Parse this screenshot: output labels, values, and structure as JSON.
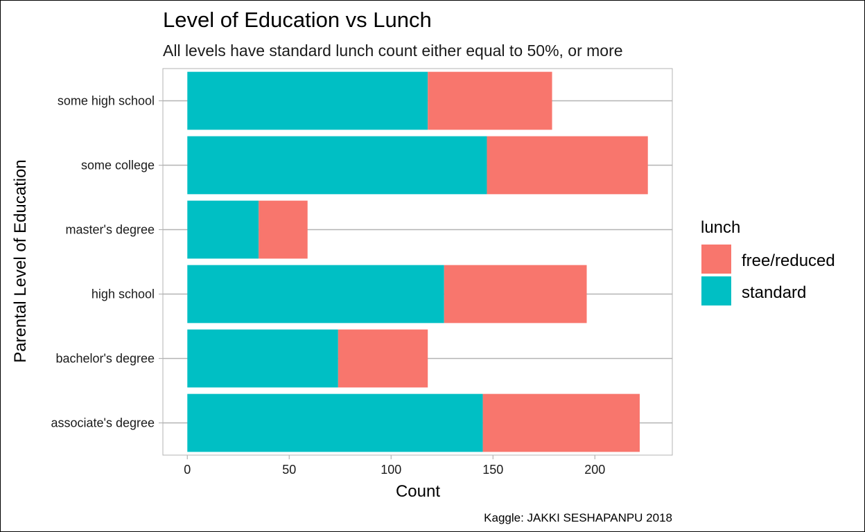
{
  "chart_data": {
    "type": "bar",
    "orientation": "horizontal",
    "stacked": true,
    "title": "Level of Education vs Lunch",
    "subtitle": "All levels have standard lunch count either equal to 50%, or more",
    "xlabel": "Count",
    "ylabel": "Parental Level of Education",
    "caption": "Kaggle: JAKKI SESHAPANPU 2018",
    "categories": [
      "some high school",
      "some college",
      "master's degree",
      "high school",
      "bachelor's degree",
      "associate's degree"
    ],
    "series": [
      {
        "name": "standard",
        "color": "#00BFC4",
        "values": [
          118,
          147,
          35,
          126,
          74,
          145
        ]
      },
      {
        "name": "free/reduced",
        "color": "#F8766D",
        "values": [
          61,
          79,
          24,
          70,
          44,
          77
        ]
      }
    ],
    "xlim": [
      -12,
      238
    ],
    "xticks": [
      0,
      50,
      100,
      150,
      200
    ],
    "xtick_labels": [
      "0",
      "50",
      "100",
      "150",
      "200"
    ],
    "grid": true,
    "legend": {
      "title": "lunch",
      "placement": "right",
      "entries": [
        {
          "label": "free/reduced",
          "color": "#F8766D"
        },
        {
          "label": "standard",
          "color": "#00BFC4"
        }
      ]
    }
  }
}
